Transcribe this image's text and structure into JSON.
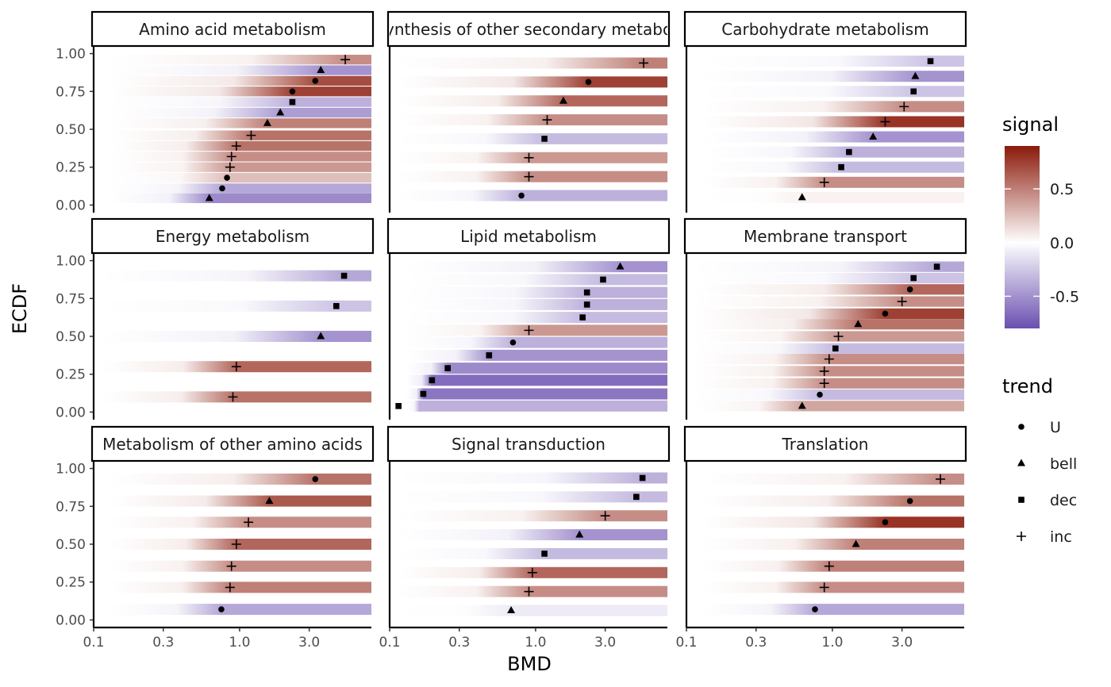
{
  "colors": {
    "low": "#6a4fb0",
    "mid": "#ffffff",
    "high": "#8b1a0a"
  },
  "chart_data": {
    "type": "heatmap",
    "xlabel": "BMD",
    "ylabel": "ECDF",
    "x_scale": "log10",
    "x_range": [
      0.1,
      8
    ],
    "x_ticks": [
      0.1,
      0.3,
      1.0,
      3.0
    ],
    "x_tick_labels": [
      "0.1",
      "0.3",
      "1.0",
      "3.0"
    ],
    "y_range": [
      0,
      1
    ],
    "y_ticks": [
      0,
      0.25,
      0.5,
      0.75,
      1
    ],
    "y_tick_labels": [
      "0.00",
      "0.25",
      "0.50",
      "0.75",
      "1.00"
    ],
    "legend_signal": {
      "title": "signal",
      "tick_values": [
        0.5,
        0,
        -0.5
      ],
      "tick_labels": [
        "0.5",
        "0.0",
        "-0.5"
      ],
      "range": [
        -0.8,
        0.9
      ]
    },
    "legend_trend": {
      "title": "trend",
      "entries": [
        {
          "label": "U",
          "shape": "circle"
        },
        {
          "label": "bell",
          "shape": "triangle"
        },
        {
          "label": "dec",
          "shape": "square"
        },
        {
          "label": "inc",
          "shape": "plus"
        }
      ]
    },
    "panels": [
      {
        "title": "Amino acid metabolism",
        "rows": [
          {
            "ecdf": 0.045,
            "bmd": 0.62,
            "trend": "bell",
            "signal": -0.6
          },
          {
            "ecdf": 0.11,
            "bmd": 0.76,
            "trend": "U",
            "signal": -0.45
          },
          {
            "ecdf": 0.18,
            "bmd": 0.82,
            "trend": "U",
            "signal": 0.25
          },
          {
            "ecdf": 0.25,
            "bmd": 0.86,
            "trend": "inc",
            "signal": 0.4
          },
          {
            "ecdf": 0.32,
            "bmd": 0.88,
            "trend": "inc",
            "signal": 0.45
          },
          {
            "ecdf": 0.39,
            "bmd": 0.95,
            "trend": "inc",
            "signal": 0.55
          },
          {
            "ecdf": 0.46,
            "bmd": 1.2,
            "trend": "inc",
            "signal": 0.55
          },
          {
            "ecdf": 0.54,
            "bmd": 1.55,
            "trend": "bell",
            "signal": 0.5
          },
          {
            "ecdf": 0.61,
            "bmd": 1.9,
            "trend": "bell",
            "signal": -0.5
          },
          {
            "ecdf": 0.68,
            "bmd": 2.3,
            "trend": "dec",
            "signal": -0.4
          },
          {
            "ecdf": 0.75,
            "bmd": 2.3,
            "trend": "U",
            "signal": 0.75
          },
          {
            "ecdf": 0.82,
            "bmd": 3.3,
            "trend": "U",
            "signal": 0.7
          },
          {
            "ecdf": 0.89,
            "bmd": 3.6,
            "trend": "bell",
            "signal": -0.55
          },
          {
            "ecdf": 0.96,
            "bmd": 5.3,
            "trend": "inc",
            "signal": 0.45
          }
        ]
      },
      {
        "title": "Biosynthesis of other secondary metabolites",
        "rows": [
          {
            "ecdf": 0.0625,
            "bmd": 0.8,
            "trend": "U",
            "signal": -0.4
          },
          {
            "ecdf": 0.1875,
            "bmd": 0.9,
            "trend": "inc",
            "signal": 0.45
          },
          {
            "ecdf": 0.3125,
            "bmd": 0.9,
            "trend": "inc",
            "signal": 0.4
          },
          {
            "ecdf": 0.4375,
            "bmd": 1.15,
            "trend": "dec",
            "signal": -0.35
          },
          {
            "ecdf": 0.5625,
            "bmd": 1.2,
            "trend": "inc",
            "signal": 0.45
          },
          {
            "ecdf": 0.6875,
            "bmd": 1.55,
            "trend": "bell",
            "signal": 0.6
          },
          {
            "ecdf": 0.8125,
            "bmd": 2.3,
            "trend": "U",
            "signal": 0.75
          },
          {
            "ecdf": 0.9375,
            "bmd": 5.5,
            "trend": "inc",
            "signal": 0.5
          }
        ]
      },
      {
        "title": "Carbohydrate metabolism",
        "rows": [
          {
            "ecdf": 0.05,
            "bmd": 0.62,
            "trend": "bell",
            "signal": 0.05
          },
          {
            "ecdf": 0.15,
            "bmd": 0.88,
            "trend": "inc",
            "signal": 0.45
          },
          {
            "ecdf": 0.25,
            "bmd": 1.15,
            "trend": "dec",
            "signal": -0.35
          },
          {
            "ecdf": 0.35,
            "bmd": 1.3,
            "trend": "dec",
            "signal": -0.4
          },
          {
            "ecdf": 0.45,
            "bmd": 1.9,
            "trend": "bell",
            "signal": -0.55
          },
          {
            "ecdf": 0.55,
            "bmd": 2.3,
            "trend": "inc",
            "signal": 0.8
          },
          {
            "ecdf": 0.65,
            "bmd": 3.1,
            "trend": "inc",
            "signal": 0.45
          },
          {
            "ecdf": 0.75,
            "bmd": 3.6,
            "trend": "dec",
            "signal": -0.3
          },
          {
            "ecdf": 0.85,
            "bmd": 3.7,
            "trend": "bell",
            "signal": -0.55
          },
          {
            "ecdf": 0.95,
            "bmd": 4.7,
            "trend": "dec",
            "signal": -0.3
          }
        ]
      },
      {
        "title": "Energy metabolism",
        "rows": [
          {
            "ecdf": 0.1,
            "bmd": 0.9,
            "trend": "inc",
            "signal": 0.55
          },
          {
            "ecdf": 0.3,
            "bmd": 0.95,
            "trend": "inc",
            "signal": 0.6
          },
          {
            "ecdf": 0.5,
            "bmd": 3.6,
            "trend": "bell",
            "signal": -0.55
          },
          {
            "ecdf": 0.7,
            "bmd": 4.6,
            "trend": "dec",
            "signal": -0.3
          },
          {
            "ecdf": 0.9,
            "bmd": 5.2,
            "trend": "dec",
            "signal": -0.45
          }
        ]
      },
      {
        "title": "Lipid metabolism",
        "rows": [
          {
            "ecdf": 0.04,
            "bmd": 0.115,
            "trend": "dec",
            "signal": -0.4
          },
          {
            "ecdf": 0.12,
            "bmd": 0.17,
            "trend": "dec",
            "signal": -0.7
          },
          {
            "ecdf": 0.21,
            "bmd": 0.195,
            "trend": "dec",
            "signal": -0.75
          },
          {
            "ecdf": 0.29,
            "bmd": 0.25,
            "trend": "dec",
            "signal": -0.6
          },
          {
            "ecdf": 0.375,
            "bmd": 0.48,
            "trend": "dec",
            "signal": -0.55
          },
          {
            "ecdf": 0.46,
            "bmd": 0.7,
            "trend": "U",
            "signal": -0.4
          },
          {
            "ecdf": 0.54,
            "bmd": 0.9,
            "trend": "inc",
            "signal": 0.4
          },
          {
            "ecdf": 0.625,
            "bmd": 2.1,
            "trend": "dec",
            "signal": -0.35
          },
          {
            "ecdf": 0.71,
            "bmd": 2.25,
            "trend": "dec",
            "signal": -0.4
          },
          {
            "ecdf": 0.79,
            "bmd": 2.25,
            "trend": "dec",
            "signal": -0.4
          },
          {
            "ecdf": 0.875,
            "bmd": 2.9,
            "trend": "dec",
            "signal": -0.35
          },
          {
            "ecdf": 0.96,
            "bmd": 3.8,
            "trend": "bell",
            "signal": -0.55
          }
        ]
      },
      {
        "title": "Membrane transport",
        "rows": [
          {
            "ecdf": 0.04,
            "bmd": 0.62,
            "trend": "bell",
            "signal": 0.35
          },
          {
            "ecdf": 0.115,
            "bmd": 0.82,
            "trend": "U",
            "signal": -0.35
          },
          {
            "ecdf": 0.19,
            "bmd": 0.88,
            "trend": "inc",
            "signal": 0.45
          },
          {
            "ecdf": 0.27,
            "bmd": 0.88,
            "trend": "inc",
            "signal": 0.45
          },
          {
            "ecdf": 0.35,
            "bmd": 0.95,
            "trend": "inc",
            "signal": 0.45
          },
          {
            "ecdf": 0.42,
            "bmd": 1.05,
            "trend": "dec",
            "signal": -0.35
          },
          {
            "ecdf": 0.5,
            "bmd": 1.1,
            "trend": "inc",
            "signal": 0.4
          },
          {
            "ecdf": 0.58,
            "bmd": 1.5,
            "trend": "bell",
            "signal": 0.55
          },
          {
            "ecdf": 0.65,
            "bmd": 2.3,
            "trend": "U",
            "signal": 0.75
          },
          {
            "ecdf": 0.73,
            "bmd": 3.0,
            "trend": "inc",
            "signal": 0.45
          },
          {
            "ecdf": 0.81,
            "bmd": 3.4,
            "trend": "U",
            "signal": 0.6
          },
          {
            "ecdf": 0.885,
            "bmd": 3.6,
            "trend": "dec",
            "signal": -0.3
          },
          {
            "ecdf": 0.96,
            "bmd": 5.2,
            "trend": "dec",
            "signal": -0.45
          }
        ]
      },
      {
        "title": "Metabolism of other amino acids",
        "rows": [
          {
            "ecdf": 0.07,
            "bmd": 0.75,
            "trend": "U",
            "signal": -0.45
          },
          {
            "ecdf": 0.215,
            "bmd": 0.86,
            "trend": "inc",
            "signal": 0.5
          },
          {
            "ecdf": 0.355,
            "bmd": 0.88,
            "trend": "inc",
            "signal": 0.45
          },
          {
            "ecdf": 0.5,
            "bmd": 0.95,
            "trend": "inc",
            "signal": 0.6
          },
          {
            "ecdf": 0.645,
            "bmd": 1.15,
            "trend": "inc",
            "signal": 0.45
          },
          {
            "ecdf": 0.785,
            "bmd": 1.6,
            "trend": "bell",
            "signal": 0.65
          },
          {
            "ecdf": 0.93,
            "bmd": 3.3,
            "trend": "U",
            "signal": 0.55
          }
        ]
      },
      {
        "title": "Signal transduction",
        "rows": [
          {
            "ecdf": 0.0625,
            "bmd": 0.68,
            "trend": "bell",
            "signal": -0.1
          },
          {
            "ecdf": 0.1875,
            "bmd": 0.9,
            "trend": "inc",
            "signal": 0.45
          },
          {
            "ecdf": 0.3125,
            "bmd": 0.95,
            "trend": "inc",
            "signal": 0.6
          },
          {
            "ecdf": 0.4375,
            "bmd": 1.15,
            "trend": "dec",
            "signal": -0.35
          },
          {
            "ecdf": 0.5625,
            "bmd": 2.0,
            "trend": "bell",
            "signal": -0.55
          },
          {
            "ecdf": 0.6875,
            "bmd": 3.0,
            "trend": "inc",
            "signal": 0.45
          },
          {
            "ecdf": 0.8125,
            "bmd": 4.9,
            "trend": "dec",
            "signal": -0.35
          },
          {
            "ecdf": 0.9375,
            "bmd": 5.4,
            "trend": "dec",
            "signal": -0.4
          }
        ]
      },
      {
        "title": "Translation",
        "rows": [
          {
            "ecdf": 0.07,
            "bmd": 0.76,
            "trend": "U",
            "signal": -0.45
          },
          {
            "ecdf": 0.215,
            "bmd": 0.88,
            "trend": "inc",
            "signal": 0.45
          },
          {
            "ecdf": 0.355,
            "bmd": 0.95,
            "trend": "inc",
            "signal": 0.5
          },
          {
            "ecdf": 0.5,
            "bmd": 1.45,
            "trend": "bell",
            "signal": 0.5
          },
          {
            "ecdf": 0.645,
            "bmd": 2.3,
            "trend": "U",
            "signal": 0.8
          },
          {
            "ecdf": 0.785,
            "bmd": 3.4,
            "trend": "U",
            "signal": 0.55
          },
          {
            "ecdf": 0.93,
            "bmd": 5.5,
            "trend": "inc",
            "signal": 0.45
          }
        ]
      }
    ]
  }
}
